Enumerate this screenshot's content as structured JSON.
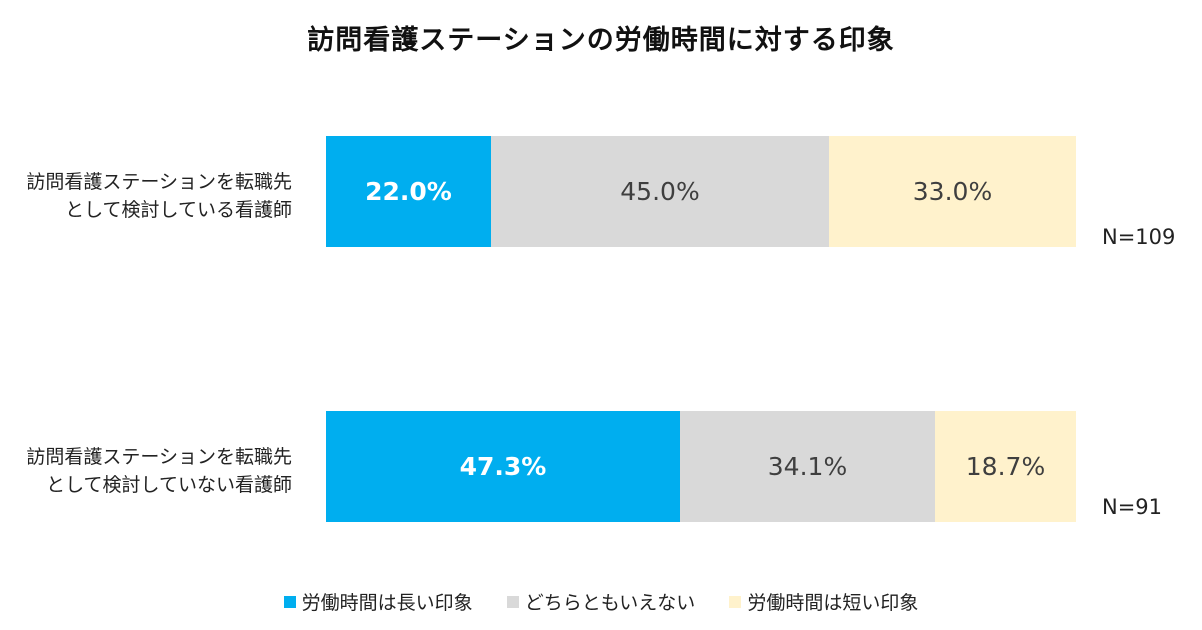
{
  "chart_data": {
    "type": "bar",
    "orientation": "horizontal",
    "stacked": true,
    "title": "訪問看護ステーションの労働時間に対する印象",
    "categories": [
      [
        "訪問看護ステーションを転職先",
        "として検討している看護師"
      ],
      [
        "訪問看護ステーションを転職先",
        "として検討していない看護師"
      ]
    ],
    "series": [
      {
        "name": "労働時間は長い印象",
        "color": "#00AEEF",
        "values": [
          22.0,
          47.3
        ],
        "labels": [
          "22.0%",
          "47.3%"
        ]
      },
      {
        "name": "どちらともいえない",
        "color": "#D9D9D9",
        "values": [
          45.0,
          34.1
        ],
        "labels": [
          "45.0%",
          "34.1%"
        ]
      },
      {
        "name": "労働時間は短い印象",
        "color": "#FFF2CC",
        "values": [
          33.0,
          18.7
        ],
        "labels": [
          "33.0%",
          "18.7%"
        ]
      }
    ],
    "n_labels": [
      "N=109",
      "N=91"
    ],
    "xlim": [
      0,
      100
    ],
    "legend_position": "bottom",
    "grid": false
  }
}
